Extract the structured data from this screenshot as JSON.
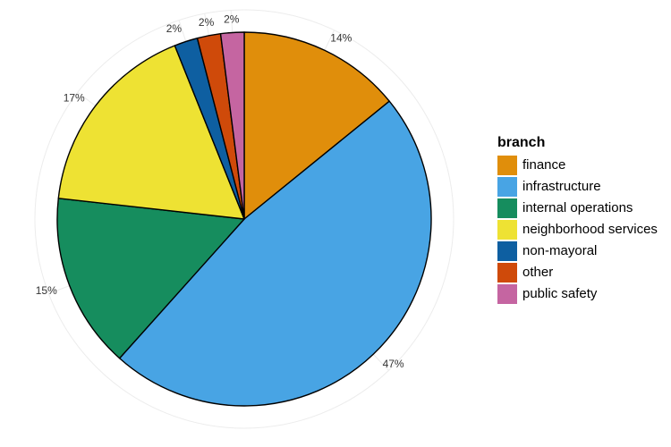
{
  "chart_data": {
    "type": "pie",
    "legend_title": "branch",
    "legend_position": "right",
    "label_format": "percent",
    "categories": [
      "finance",
      "infrastructure",
      "internal operations",
      "neighborhood services",
      "non-mayoral",
      "other",
      "public safety"
    ],
    "values": [
      14,
      47,
      15,
      17,
      2,
      2,
      2
    ],
    "labels": [
      "14%",
      "47%",
      "15%",
      "17%",
      "2%",
      "2%",
      "2%"
    ],
    "colors": [
      "#E08E0B",
      "#48A4E4",
      "#168D5E",
      "#EEE233",
      "#0E5FA1",
      "#CF4A0A",
      "#C565A1"
    ],
    "start": "12 o'clock",
    "direction": "clockwise"
  }
}
